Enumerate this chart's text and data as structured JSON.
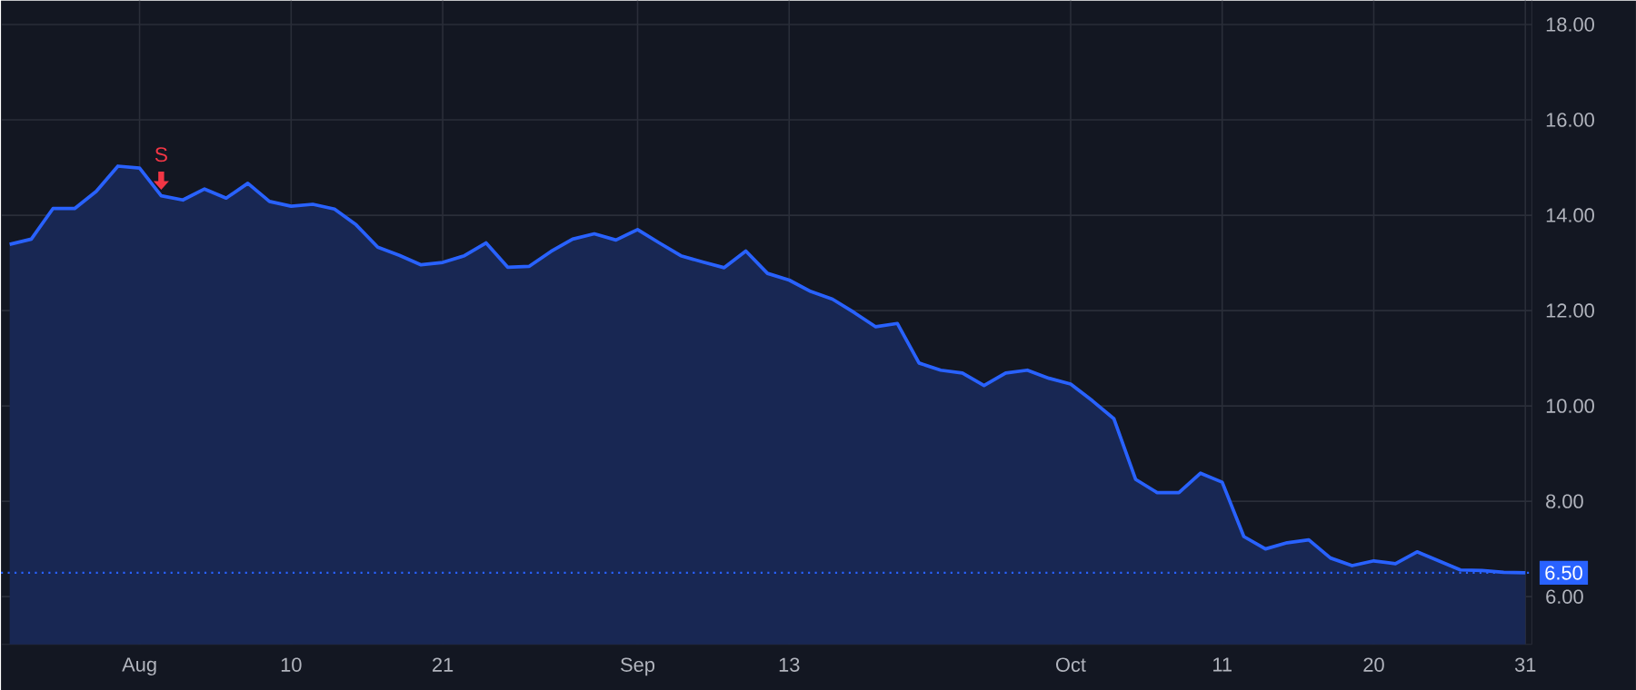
{
  "chart_data": {
    "type": "area",
    "categories": [
      null,
      null,
      null,
      null,
      null,
      null,
      "Aug",
      null,
      null,
      null,
      null,
      null,
      null,
      "10",
      null,
      null,
      null,
      null,
      null,
      null,
      "21",
      null,
      null,
      null,
      null,
      null,
      null,
      null,
      null,
      "Sep",
      null,
      null,
      null,
      null,
      null,
      null,
      "13",
      null,
      null,
      null,
      null,
      null,
      null,
      null,
      null,
      null,
      null,
      null,
      null,
      "Oct",
      null,
      null,
      null,
      null,
      null,
      null,
      "11",
      null,
      null,
      null,
      null,
      null,
      null,
      "20",
      null,
      null,
      null,
      null,
      null,
      null,
      "31"
    ],
    "series": [
      {
        "color": "#2962ff",
        "values": [
          13.39,
          13.5,
          14.14,
          14.14,
          14.5,
          15.03,
          14.99,
          14.41,
          14.32,
          14.55,
          14.36,
          14.67,
          14.29,
          14.19,
          14.23,
          14.13,
          13.8,
          13.33,
          13.16,
          12.96,
          13.01,
          13.15,
          13.42,
          12.91,
          12.93,
          13.24,
          13.5,
          13.61,
          13.48,
          13.7,
          13.42,
          13.15,
          13.02,
          12.9,
          13.25,
          12.78,
          12.64,
          12.4,
          12.24,
          11.96,
          11.66,
          11.73,
          10.9,
          10.75,
          10.69,
          10.43,
          10.69,
          10.75,
          10.58,
          10.46,
          10.11,
          9.73,
          8.46,
          8.18,
          8.18,
          8.59,
          8.4,
          7.26,
          7.0,
          7.13,
          7.19,
          6.81,
          6.65,
          6.75,
          6.69,
          6.94,
          6.75,
          6.56,
          6.55,
          6.51,
          6.5
        ]
      }
    ],
    "ylim": [
      5.0,
      18.5
    ],
    "yticks": [
      {
        "value": 6,
        "label": "6.00"
      },
      {
        "value": 8,
        "label": "8.00"
      },
      {
        "value": 10,
        "label": "10.00"
      },
      {
        "value": 12,
        "label": "12.00"
      },
      {
        "value": 14,
        "label": "14.00"
      },
      {
        "value": 16,
        "label": "16.00"
      },
      {
        "value": 18,
        "label": "18.00"
      }
    ],
    "grid": true,
    "ref_lines": [
      {
        "axis": "y",
        "value": 6.5,
        "label": "6.50",
        "color": "#2962ff",
        "line_style": "dotted"
      }
    ],
    "annotations": [
      {
        "text": "S",
        "y": 14.41
      }
    ]
  }
}
